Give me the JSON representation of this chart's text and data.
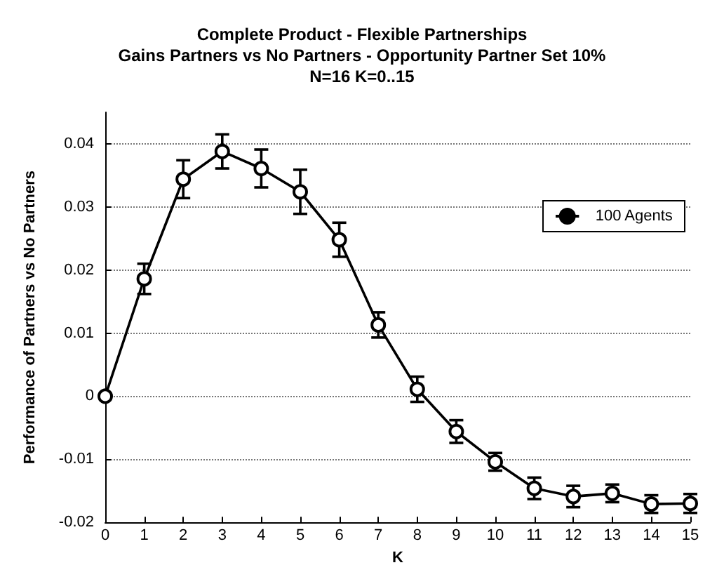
{
  "chart_data": {
    "type": "line",
    "title": "Complete Product - Flexible Partnerships\nGains Partners vs No Partners - Opportunity Partner Set 10%\nN=16 K=0..15",
    "xlabel": "K",
    "ylabel": "Performance of Partners vs No Partners",
    "x": [
      0,
      1,
      2,
      3,
      4,
      5,
      6,
      7,
      8,
      9,
      10,
      11,
      12,
      13,
      14,
      15
    ],
    "series": [
      {
        "name": "100 Agents",
        "color": "#000000",
        "values": [
          0,
          0.0186,
          0.0344,
          0.0388,
          0.0361,
          0.0324,
          0.0248,
          0.0113,
          0.0011,
          -0.0056,
          -0.0104,
          -0.0146,
          -0.0159,
          -0.0154,
          -0.0171,
          -0.017
        ],
        "errors": [
          null,
          0.0024,
          0.003,
          0.0027,
          0.003,
          0.0035,
          0.0027,
          0.002,
          0.002,
          0.0018,
          0.0014,
          0.0017,
          0.0017,
          0.0014,
          0.0014,
          0.0015
        ]
      }
    ],
    "xlim": [
      0,
      15
    ],
    "xticks": [
      0,
      1,
      2,
      3,
      4,
      5,
      6,
      7,
      8,
      9,
      10,
      11,
      12,
      13,
      14,
      15
    ],
    "ylim": [
      -0.02,
      0.045
    ],
    "yticks": [
      -0.02,
      -0.01,
      0,
      0.01,
      0.02,
      0.03,
      0.04
    ],
    "grid": "y",
    "legend": "right",
    "marker": "circle",
    "line_style": "solid"
  }
}
